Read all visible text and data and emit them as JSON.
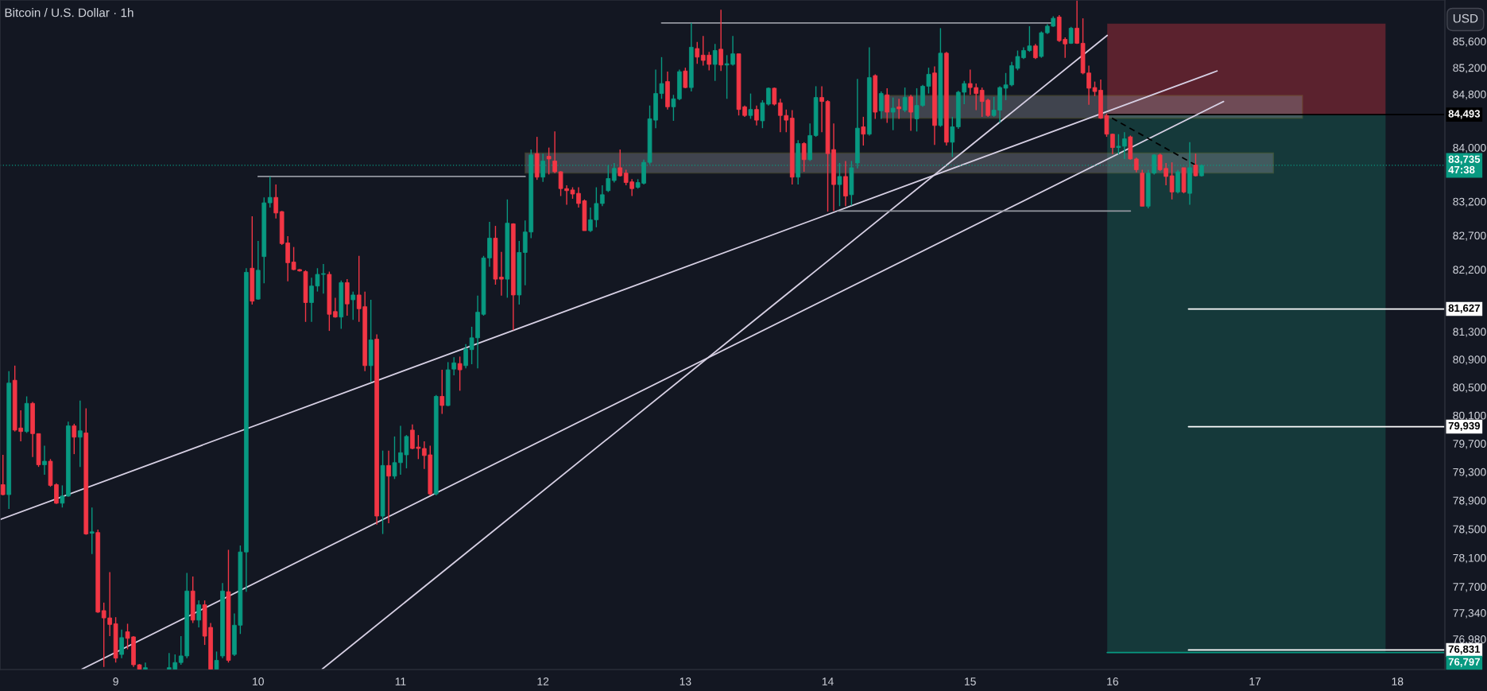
{
  "chart_data": {
    "type": "candlestick",
    "title": "Bitcoin / U.S. Dollar · 1h",
    "x": [
      8.2083,
      8.25,
      8.2917,
      8.3333,
      8.375,
      8.4167,
      8.4583,
      8.5,
      8.5417,
      8.5833,
      8.625,
      8.6667,
      8.7083,
      8.75,
      8.7917,
      8.8333,
      8.875,
      8.9167,
      8.9583,
      9,
      9.0417,
      9.0833,
      9.125,
      9.1667,
      9.2083,
      9.375,
      9.4167,
      9.4583,
      9.5,
      9.5417,
      9.5833,
      9.625,
      9.6667,
      9.7083,
      9.75,
      9.7917,
      9.8333,
      9.875,
      9.9167,
      9.9583,
      10,
      10.0417,
      10.0833,
      10.125,
      10.1667,
      10.2083,
      10.25,
      10.2917,
      10.3333,
      10.375,
      10.4167,
      10.4583,
      10.5,
      10.5417,
      10.5833,
      10.625,
      10.6667,
      10.7083,
      10.75,
      10.7917,
      10.8333,
      10.875,
      10.9167,
      10.9583,
      11,
      11.0417,
      11.0833,
      11.125,
      11.1667,
      11.2083,
      11.25,
      11.2917,
      11.3333,
      11.375,
      11.4167,
      11.4583,
      11.5,
      11.5417,
      11.5833,
      11.625,
      11.6667,
      11.7083,
      11.75,
      11.7917,
      11.8333,
      11.875,
      11.9167,
      11.9583,
      12,
      12.0417,
      12.0833,
      12.125,
      12.1667,
      12.2083,
      12.25,
      12.2917,
      12.3333,
      12.375,
      12.4167,
      12.4583,
      12.5,
      12.5417,
      12.5833,
      12.625,
      12.6667,
      12.7083,
      12.75,
      12.7917,
      12.8333,
      12.875,
      12.9167,
      12.9583,
      13,
      13.0417,
      13.0833,
      13.125,
      13.1667,
      13.2083,
      13.25,
      13.2917,
      13.3333,
      13.375,
      13.4167,
      13.4583,
      13.5,
      13.5417,
      13.5833,
      13.625,
      13.6667,
      13.7083,
      13.75,
      13.7917,
      13.8333,
      13.875,
      13.9167,
      13.9583,
      14,
      14.0417,
      14.0833,
      14.125,
      14.1667,
      14.2083,
      14.25,
      14.2917,
      14.3333,
      14.375,
      14.4167,
      14.4583,
      14.5,
      14.5417,
      14.5833,
      14.625,
      14.6667,
      14.7083,
      14.75,
      14.7917,
      14.8333,
      14.875,
      14.9167,
      14.9583,
      15,
      15.0417,
      15.0833,
      15.125,
      15.1667,
      15.2083,
      15.25,
      15.2917,
      15.3333,
      15.375,
      15.4167,
      15.4583,
      15.5,
      15.5417,
      15.5833,
      15.625,
      15.6667,
      15.7083,
      15.75,
      15.7917,
      15.8333,
      15.875,
      15.9167,
      15.9583,
      16,
      16.0417,
      16.0833,
      16.125,
      16.1667,
      16.2083,
      16.25,
      16.2917,
      16.3333,
      16.375,
      16.4167,
      16.4583,
      16.5,
      16.5417,
      16.5833,
      16.625
    ],
    "ohlc": [
      [
        79120,
        79540,
        78970,
        78980
      ],
      [
        78980,
        80730,
        78780,
        80560
      ],
      [
        80600,
        80810,
        79870,
        79890
      ],
      [
        79920,
        80170,
        79730,
        79870
      ],
      [
        79870,
        80370,
        79850,
        80270
      ],
      [
        80270,
        80290,
        79510,
        79840
      ],
      [
        79840,
        79840,
        79370,
        79400
      ],
      [
        79400,
        79670,
        79260,
        79450
      ],
      [
        79450,
        79480,
        79090,
        79110
      ],
      [
        79120,
        79140,
        78850,
        78860
      ],
      [
        78860,
        79110,
        78800,
        78960
      ],
      [
        78960,
        80010,
        78950,
        79950
      ],
      [
        79950,
        79980,
        79550,
        79790
      ],
      [
        79790,
        80310,
        79370,
        79880
      ],
      [
        79850,
        80200,
        78420,
        78430
      ],
      [
        78440,
        78800,
        78150,
        78460
      ],
      [
        78450,
        78490,
        77340,
        77350
      ],
      [
        77370,
        77480,
        76600,
        77270
      ],
      [
        77270,
        77900,
        77020,
        77180
      ],
      [
        77190,
        77280,
        76660,
        76720
      ],
      [
        76770,
        77110,
        76720,
        77000
      ],
      [
        77080,
        77190,
        76840,
        76990
      ],
      [
        77010,
        77020,
        76600,
        76630
      ],
      [
        76630,
        76640,
        76570,
        76570
      ],
      [
        76570,
        76660,
        76570,
        76590
      ],
      [
        76570,
        76790,
        76570,
        76590
      ],
      [
        76570,
        76770,
        76570,
        76660
      ],
      [
        76660,
        77020,
        76630,
        76750
      ],
      [
        76750,
        77890,
        76720,
        77640
      ],
      [
        77640,
        77840,
        77200,
        77240
      ],
      [
        77240,
        77510,
        77140,
        77450
      ],
      [
        77450,
        77510,
        76900,
        77020
      ],
      [
        77140,
        77200,
        76570,
        76570
      ],
      [
        76570,
        76810,
        76570,
        76690
      ],
      [
        76750,
        77750,
        76720,
        77640
      ],
      [
        77630,
        78210,
        76660,
        76690
      ],
      [
        76770,
        77330,
        76750,
        77170
      ],
      [
        77170,
        78270,
        77050,
        78180
      ],
      [
        78180,
        82220,
        77630,
        82160
      ],
      [
        82220,
        82980,
        81690,
        81740
      ],
      [
        81770,
        82620,
        81760,
        82190
      ],
      [
        82390,
        83260,
        82000,
        83180
      ],
      [
        83180,
        83570,
        83110,
        83260
      ],
      [
        83260,
        83450,
        82950,
        83030
      ],
      [
        83050,
        83060,
        82560,
        82580
      ],
      [
        82590,
        82690,
        82030,
        82300
      ],
      [
        82310,
        82530,
        82190,
        82200
      ],
      [
        82200,
        82210,
        82170,
        82180
      ],
      [
        82170,
        82190,
        81440,
        81720
      ],
      [
        81720,
        82080,
        81440,
        81960
      ],
      [
        81960,
        82220,
        81880,
        82130
      ],
      [
        82130,
        82280,
        81850,
        82140
      ],
      [
        82130,
        82170,
        81310,
        81550
      ],
      [
        81590,
        81790,
        81500,
        81510
      ],
      [
        81510,
        82040,
        81340,
        82010
      ],
      [
        82010,
        82060,
        81530,
        81700
      ],
      [
        81760,
        81880,
        81470,
        81830
      ],
      [
        81830,
        82400,
        81440,
        81630
      ],
      [
        81660,
        81880,
        80730,
        80810
      ],
      [
        80810,
        81760,
        80580,
        81180
      ],
      [
        81190,
        81260,
        78560,
        78680
      ],
      [
        78680,
        79600,
        78430,
        79390
      ],
      [
        79390,
        79600,
        78580,
        79240
      ],
      [
        79240,
        79800,
        79200,
        79430
      ],
      [
        79430,
        79950,
        79260,
        79570
      ],
      [
        79540,
        79820,
        79350,
        79800
      ],
      [
        79890,
        79970,
        79620,
        79630
      ],
      [
        79650,
        79820,
        79480,
        79630
      ],
      [
        79630,
        79730,
        79340,
        79530
      ],
      [
        79540,
        79670,
        78970,
        78990
      ],
      [
        78990,
        80390,
        78970,
        80370
      ],
      [
        80370,
        80750,
        80120,
        80240
      ],
      [
        80240,
        80860,
        80230,
        80750
      ],
      [
        80760,
        80930,
        80670,
        80850
      ],
      [
        80840,
        80940,
        80450,
        80750
      ],
      [
        80810,
        81120,
        80770,
        81050
      ],
      [
        81040,
        81370,
        80830,
        81210
      ],
      [
        81210,
        81820,
        80770,
        81580
      ],
      [
        81550,
        82400,
        81530,
        82370
      ],
      [
        82370,
        82900,
        82240,
        82660
      ],
      [
        82660,
        82840,
        81980,
        82060
      ],
      [
        82090,
        82460,
        81820,
        82060
      ],
      [
        82060,
        83230,
        81790,
        82880
      ],
      [
        82870,
        82880,
        81320,
        81830
      ],
      [
        81830,
        82620,
        81690,
        82450
      ],
      [
        82450,
        82920,
        81970,
        82750
      ],
      [
        82750,
        83970,
        82660,
        83890
      ],
      [
        83910,
        84160,
        83520,
        83560
      ],
      [
        83560,
        83910,
        83490,
        83800
      ],
      [
        83870,
        84000,
        83600,
        83830
      ],
      [
        83800,
        84240,
        83620,
        83640
      ],
      [
        83640,
        83650,
        83280,
        83390
      ],
      [
        83390,
        83440,
        83150,
        83360
      ],
      [
        83370,
        83410,
        83240,
        83310
      ],
      [
        83320,
        83410,
        83110,
        83170
      ],
      [
        83210,
        83230,
        82770,
        82770
      ],
      [
        82770,
        83110,
        82750,
        82930
      ],
      [
        82930,
        83410,
        82820,
        83170
      ],
      [
        83170,
        83440,
        83130,
        83300
      ],
      [
        83360,
        83740,
        83340,
        83540
      ],
      [
        83510,
        83770,
        83480,
        83690
      ],
      [
        83700,
        83970,
        83570,
        83580
      ],
      [
        83620,
        83670,
        83440,
        83480
      ],
      [
        83490,
        83530,
        83280,
        83390
      ],
      [
        83410,
        83530,
        83390,
        83480
      ],
      [
        83470,
        83820,
        83450,
        83780
      ],
      [
        83780,
        84630,
        83750,
        84430
      ],
      [
        84410,
        85170,
        84290,
        84810
      ],
      [
        84810,
        85360,
        84730,
        84960
      ],
      [
        84990,
        85140,
        84570,
        84610
      ],
      [
        84610,
        84790,
        84400,
        84730
      ],
      [
        84730,
        85170,
        84710,
        85140
      ],
      [
        85150,
        85200,
        84890,
        84900
      ],
      [
        84900,
        85880,
        84840,
        85510
      ],
      [
        85490,
        85590,
        85260,
        85360
      ],
      [
        85390,
        85680,
        85230,
        85310
      ],
      [
        85390,
        85440,
        85160,
        85250
      ],
      [
        85250,
        85560,
        85000,
        85460
      ],
      [
        85480,
        86080,
        85150,
        85240
      ],
      [
        85240,
        85390,
        84730,
        85260
      ],
      [
        85250,
        85680,
        85230,
        85410
      ],
      [
        85410,
        85410,
        84480,
        84570
      ],
      [
        84610,
        84630,
        84460,
        84480
      ],
      [
        84480,
        84810,
        84430,
        84570
      ],
      [
        84570,
        84630,
        84330,
        84410
      ],
      [
        84400,
        84710,
        84290,
        84670
      ],
      [
        84650,
        84900,
        84630,
        84890
      ],
      [
        84890,
        84900,
        84630,
        84650
      ],
      [
        84670,
        84730,
        84230,
        84480
      ],
      [
        84480,
        84570,
        84230,
        84410
      ],
      [
        84440,
        84560,
        83450,
        83560
      ],
      [
        83560,
        84110,
        83450,
        84060
      ],
      [
        84060,
        84080,
        83640,
        83820
      ],
      [
        83820,
        84360,
        83800,
        84180
      ],
      [
        84180,
        84920,
        84160,
        84750
      ],
      [
        84750,
        84920,
        84230,
        84690
      ],
      [
        84690,
        84710,
        83050,
        83910
      ],
      [
        83970,
        84360,
        83060,
        83450
      ],
      [
        83450,
        83770,
        83130,
        83570
      ],
      [
        83570,
        83800,
        83130,
        83280
      ],
      [
        83300,
        83800,
        83140,
        83700
      ],
      [
        83770,
        85030,
        83690,
        84290
      ],
      [
        84310,
        84460,
        84030,
        84200
      ],
      [
        84200,
        85510,
        84180,
        85050
      ],
      [
        85080,
        85100,
        84430,
        84530
      ],
      [
        84550,
        84840,
        84430,
        84810
      ],
      [
        84790,
        84890,
        84370,
        84530
      ],
      [
        84530,
        84750,
        84260,
        84590
      ],
      [
        84610,
        84730,
        84430,
        84580
      ],
      [
        84560,
        84900,
        84530,
        84750
      ],
      [
        84760,
        84790,
        84250,
        84530
      ],
      [
        84430,
        84890,
        84240,
        84630
      ],
      [
        84630,
        84940,
        84610,
        84920
      ],
      [
        84920,
        85200,
        84810,
        85100
      ],
      [
        85120,
        85220,
        84040,
        84330
      ],
      [
        84330,
        85800,
        84310,
        85420
      ],
      [
        85420,
        85440,
        84030,
        84080
      ],
      [
        84080,
        84460,
        83860,
        84310
      ],
      [
        84310,
        84850,
        84280,
        84830
      ],
      [
        84830,
        85000,
        84650,
        84960
      ],
      [
        84960,
        85170,
        84790,
        84900
      ],
      [
        84900,
        84960,
        84560,
        84810
      ],
      [
        84860,
        84900,
        84460,
        84690
      ],
      [
        84710,
        84730,
        84460,
        84480
      ],
      [
        84480,
        84760,
        84460,
        84560
      ],
      [
        84560,
        84920,
        84370,
        84900
      ],
      [
        84890,
        85120,
        84710,
        84940
      ],
      [
        84940,
        85290,
        84920,
        85230
      ],
      [
        85190,
        85460,
        85160,
        85370
      ],
      [
        85350,
        85510,
        85330,
        85460
      ],
      [
        85460,
        85830,
        85440,
        85530
      ],
      [
        85530,
        85560,
        85330,
        85350
      ],
      [
        85370,
        85750,
        85350,
        85730
      ],
      [
        85730,
        85860,
        85710,
        85830
      ],
      [
        85830,
        85980,
        85820,
        85950
      ],
      [
        85970,
        86000,
        85590,
        85610
      ],
      [
        85630,
        85660,
        85350,
        85560
      ],
      [
        85570,
        85820,
        85560,
        85800
      ],
      [
        85800,
        86220,
        85560,
        85570
      ],
      [
        85570,
        85950,
        85100,
        85120
      ],
      [
        85120,
        85230,
        84640,
        84890
      ],
      [
        84900,
        84990,
        84770,
        84840
      ],
      [
        84860,
        85020,
        84430,
        84440
      ],
      [
        84480,
        84510,
        84160,
        84200
      ],
      [
        84200,
        84210,
        83900,
        84000
      ],
      [
        84000,
        84200,
        83900,
        84020
      ],
      [
        84020,
        84230,
        83830,
        84130
      ],
      [
        84160,
        84180,
        83820,
        83830
      ],
      [
        83830,
        83850,
        83630,
        83670
      ],
      [
        83620,
        83670,
        83130,
        83130
      ],
      [
        83130,
        83670,
        83100,
        83620
      ],
      [
        83620,
        83900,
        83600,
        83890
      ],
      [
        83890,
        83910,
        83650,
        83670
      ],
      [
        83690,
        83770,
        83440,
        83570
      ],
      [
        83580,
        83780,
        83230,
        83340
      ],
      [
        83340,
        83670,
        83320,
        83640
      ],
      [
        83700,
        83700,
        83320,
        83340
      ],
      [
        83320,
        84080,
        83150,
        83700
      ],
      [
        83740,
        83910,
        83570,
        83580
      ],
      [
        83580,
        83750,
        83570,
        83735
      ]
    ],
    "series": [
      {
        "type": "area",
        "color": "#5b222e",
        "x": [
          15.9625,
          15.9625,
          17.9167,
          17.9167
        ],
        "values": [
          84493,
          85870,
          85870,
          84493
        ]
      },
      {
        "type": "area",
        "color": "#15393a",
        "x": [
          15.9625,
          15.9625,
          17.9167,
          17.9167
        ],
        "values": [
          76797,
          84493,
          84493,
          76797
        ]
      },
      {
        "type": "area",
        "color": "#9598a1",
        "x": [
          11.875,
          11.875,
          17.1292,
          17.1292
        ],
        "values": [
          83620,
          83920,
          83920,
          83620
        ]
      },
      {
        "type": "area",
        "color": "#9598a1",
        "x": [
          14.375,
          14.375,
          17.3333,
          17.3333
        ],
        "values": [
          84440,
          84780,
          84780,
          84440
        ]
      },
      {
        "type": "line",
        "color": "#000000",
        "x": [
          15.9625,
          18.3333
        ],
        "values": [
          84493,
          84493
        ],
        "value_labels": [
          null,
          "84,493"
        ]
      },
      {
        "type": "line",
        "color": "#089981",
        "x": [
          15.9625,
          18.3333
        ],
        "values": [
          76797,
          76797
        ],
        "value_labels": [
          null,
          "76,797"
        ]
      },
      {
        "type": "line",
        "color": "#d6cfe3",
        "x": [
          8.1875,
          16.7333
        ],
        "values": [
          78630,
          85150
        ]
      },
      {
        "type": "line",
        "color": "#d6cfe3",
        "x": [
          8.7625,
          16.7792
        ],
        "values": [
          76570,
          84690
        ]
      },
      {
        "type": "line",
        "color": "#d6cfe3",
        "x": [
          10.45,
          15.9625
        ],
        "values": [
          76570,
          85690
        ]
      },
      {
        "type": "line",
        "color": "#9598a1",
        "x": [
          10.0,
          11.875
        ],
        "values": [
          83570,
          83570
        ]
      },
      {
        "type": "line",
        "color": "#9598a1",
        "x": [
          12.8333,
          15.575
        ],
        "values": [
          85880,
          85880
        ]
      },
      {
        "type": "line",
        "color": "#9598a1",
        "x": [
          14.0708,
          16.125
        ],
        "values": [
          83060,
          83060
        ]
      },
      {
        "type": "line",
        "color": "#000000",
        "line_style": "dashed",
        "x": [
          15.9958,
          16.625
        ],
        "values": [
          84440,
          83690
        ]
      },
      {
        "type": "line",
        "color": "#ffffff",
        "x": [
          16.5333,
          18.3333
        ],
        "values": [
          81627,
          81627
        ],
        "value_labels": [
          null,
          "81,627"
        ]
      },
      {
        "type": "line",
        "color": "#ffffff",
        "x": [
          16.5333,
          18.3333
        ],
        "values": [
          79939,
          79939
        ],
        "value_labels": [
          null,
          "79,939"
        ]
      },
      {
        "type": "line",
        "color": "#ffffff",
        "x": [
          16.5333,
          18.3333
        ],
        "values": [
          76831,
          76831
        ],
        "value_labels": [
          null,
          "76,831"
        ]
      }
    ],
    "ref_lines": [
      {
        "axis": "y",
        "value": 83735,
        "line_style": "dotted",
        "color": "#089981",
        "label": "83,735\n47:38"
      }
    ],
    "annotations": [
      "USD"
    ],
    "log": true,
    "xlim": [
      8.1875,
      18.3333
    ],
    "xticks": [
      9,
      10,
      11,
      12,
      13,
      14,
      15,
      16,
      17,
      18
    ],
    "ylim": [
      76565,
      86230
    ],
    "yticks": [
      {
        "value": 85600,
        "label": "85,600"
      },
      {
        "value": 85200,
        "label": "85,200"
      },
      {
        "value": 84800,
        "label": "84,800"
      },
      {
        "value": 84000,
        "label": "84,000"
      },
      {
        "value": 83200,
        "label": "83,200"
      },
      {
        "value": 82700,
        "label": "82,700"
      },
      {
        "value": 82200,
        "label": "82,200"
      },
      {
        "value": 81300,
        "label": "81,300"
      },
      {
        "value": 80900,
        "label": "80,900"
      },
      {
        "value": 80500,
        "label": "80,500"
      },
      {
        "value": 80100,
        "label": "80,100"
      },
      {
        "value": 79700,
        "label": "79,700"
      },
      {
        "value": 79300,
        "label": "79,300"
      },
      {
        "value": 78900,
        "label": "78,900"
      },
      {
        "value": 78500,
        "label": "78,500"
      },
      {
        "value": 78100,
        "label": "78,100"
      },
      {
        "value": 77700,
        "label": "77,700"
      },
      {
        "value": 77340,
        "label": "77,340"
      },
      {
        "value": 76980,
        "label": "76,980"
      }
    ]
  }
}
